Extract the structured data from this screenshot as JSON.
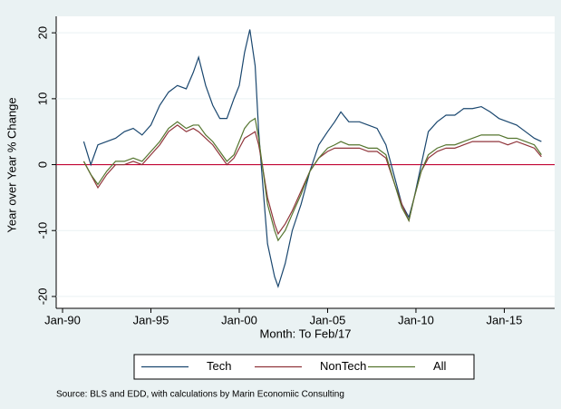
{
  "chart_data": {
    "type": "line",
    "x_label": "Month: To Feb/17",
    "y_label": "Year over Year % Change",
    "source": "Source: BLS and EDD, with calculations by Marin Economiic Consulting",
    "x": [
      1991.2,
      1991.6,
      1992.0,
      1992.5,
      1993.0,
      1993.5,
      1994.0,
      1994.5,
      1995.0,
      1995.5,
      1996.0,
      1996.5,
      1997.0,
      1997.4,
      1997.7,
      1998.1,
      1998.5,
      1998.9,
      1999.3,
      1999.7,
      2000.0,
      2000.3,
      2000.6,
      2000.9,
      2001.1,
      2001.3,
      2001.6,
      2002.0,
      2002.2,
      2002.6,
      2003.0,
      2003.5,
      2004.0,
      2004.5,
      2005.0,
      2005.4,
      2005.75,
      2006.2,
      2006.8,
      2007.3,
      2007.8,
      2008.3,
      2008.8,
      2009.2,
      2009.6,
      2009.9,
      2010.3,
      2010.7,
      2011.2,
      2011.7,
      2012.2,
      2012.7,
      2013.2,
      2013.7,
      2014.2,
      2014.7,
      2015.2,
      2015.7,
      2016.2,
      2016.7,
      2017.1
    ],
    "series": [
      {
        "name": "Tech",
        "color": "#1a476f",
        "values": [
          3.5,
          0,
          3,
          3.5,
          4,
          5,
          5.5,
          4.5,
          6,
          9,
          11,
          12,
          11.5,
          14,
          16.3,
          12,
          9,
          7,
          7,
          10,
          12,
          17,
          20.5,
          15,
          5,
          -2,
          -12,
          -17,
          -18.5,
          -15,
          -10,
          -6,
          -1,
          3,
          5,
          6.5,
          8,
          6.5,
          6.5,
          6,
          5.5,
          3,
          -2,
          -6,
          -8,
          -5,
          0,
          5,
          6.5,
          7.5,
          7.5,
          8.5,
          8.5,
          8.8,
          8,
          7,
          6.5,
          6,
          5,
          4,
          3.5
        ]
      },
      {
        "name": "NonTech",
        "color": "#90353b",
        "values": [
          0.5,
          -1.5,
          -3.5,
          -1.5,
          0,
          0,
          0.5,
          0,
          1.5,
          3,
          5,
          6,
          5,
          5.5,
          5,
          4,
          3,
          1.5,
          0,
          1,
          2.5,
          4,
          4.5,
          5,
          3,
          0,
          -5,
          -9,
          -10.5,
          -9,
          -7,
          -4,
          -1,
          1,
          2,
          2.5,
          2.5,
          2.5,
          2.5,
          2,
          2,
          1,
          -3,
          -6,
          -8.5,
          -5,
          -1,
          1,
          2,
          2.5,
          2.5,
          3,
          3.5,
          3.5,
          3.5,
          3.5,
          3,
          3.5,
          3,
          2.5,
          1.2
        ]
      },
      {
        "name": "All",
        "color": "#55752f",
        "values": [
          0.5,
          -1.5,
          -3,
          -1,
          0.5,
          0.5,
          1,
          0.5,
          2,
          3.5,
          5.5,
          6.5,
          5.5,
          6,
          6,
          4.5,
          3.5,
          2,
          0.5,
          1.5,
          3.5,
          5.5,
          6.5,
          7,
          4,
          0,
          -6,
          -10,
          -11.5,
          -10,
          -7.5,
          -4.5,
          -1,
          1,
          2.5,
          3,
          3.5,
          3,
          3,
          2.5,
          2.5,
          1.5,
          -3,
          -6.5,
          -8.5,
          -5,
          -1,
          1.5,
          2.5,
          3,
          3,
          3.5,
          4,
          4.5,
          4.5,
          4.5,
          4,
          4,
          3.5,
          3,
          1.5
        ]
      }
    ],
    "xlim": [
      1989.64,
      2017.85
    ],
    "xticks": [
      {
        "value": 1990,
        "label": "Jan-90"
      },
      {
        "value": 1995,
        "label": "Jan-95"
      },
      {
        "value": 2000,
        "label": "Jan-00"
      },
      {
        "value": 2005,
        "label": "Jan-05"
      },
      {
        "value": 2010,
        "label": "Jan-10"
      },
      {
        "value": 2015,
        "label": "Jan-15"
      }
    ],
    "ylim": [
      -21.8,
      22.5
    ],
    "yticks": [
      -20,
      -10,
      0,
      10,
      20
    ],
    "refline": 0,
    "refline_color": "#c10534",
    "grid": true,
    "legend": "bottom"
  }
}
